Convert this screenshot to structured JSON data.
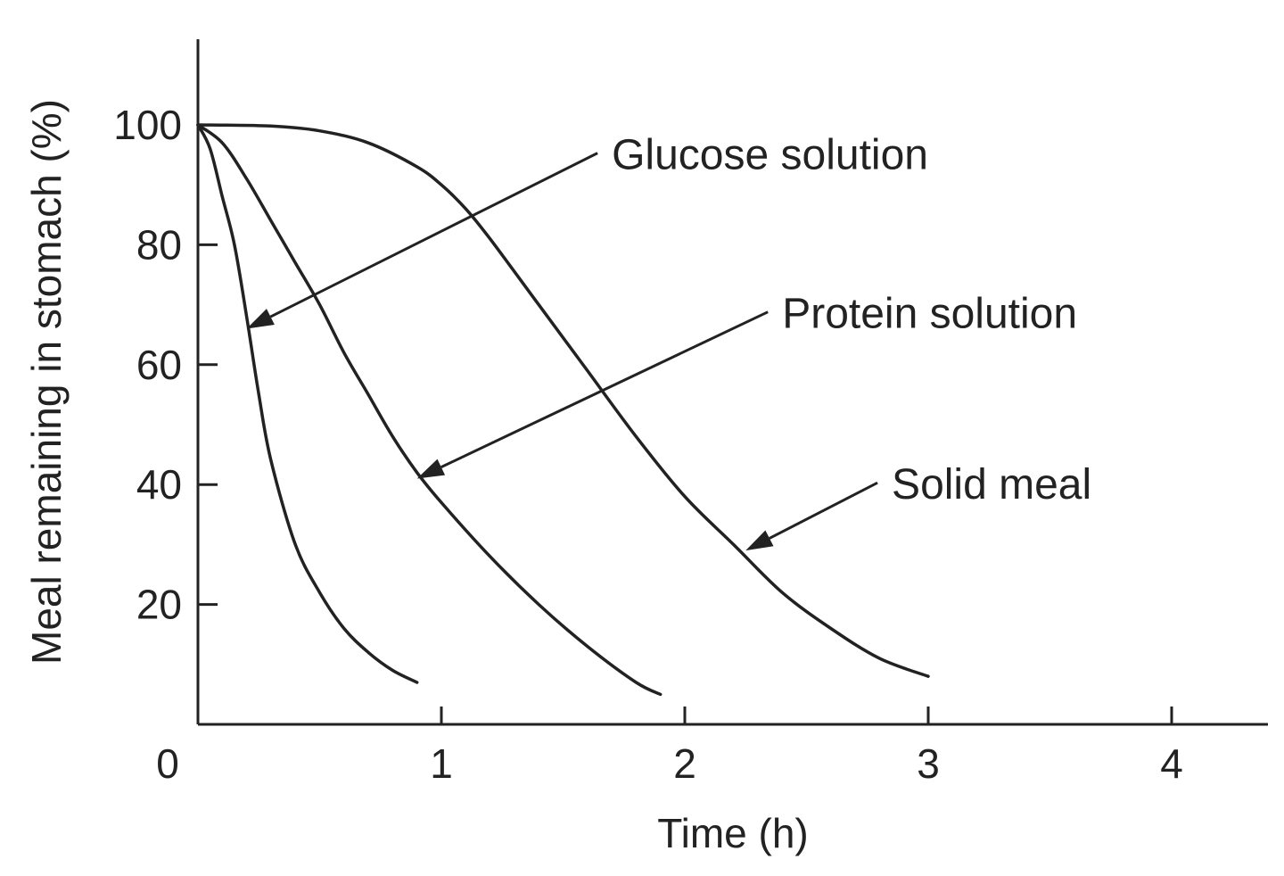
{
  "chart_data": {
    "type": "line",
    "title": "",
    "xlabel": "Time (h)",
    "ylabel": "Meal remaining in stomach (%)",
    "xlim": [
      0,
      4.4
    ],
    "ylim": [
      0,
      115
    ],
    "x_ticks": [
      0,
      1,
      2,
      3,
      4
    ],
    "x_tick_labels": [
      "0",
      "1",
      "2",
      "3",
      "4"
    ],
    "y_ticks": [
      20,
      40,
      60,
      80,
      100
    ],
    "y_tick_labels": [
      "20",
      "40",
      "60",
      "80",
      "100"
    ],
    "grid": false,
    "legend": "none",
    "series": [
      {
        "name": "Glucose solution",
        "x": [
          0,
          0.05,
          0.1,
          0.15,
          0.2,
          0.25,
          0.3,
          0.4,
          0.5,
          0.6,
          0.7,
          0.8,
          0.9
        ],
        "y": [
          100,
          96,
          88,
          80,
          68,
          55,
          44,
          30,
          22,
          16,
          12,
          9,
          7
        ]
      },
      {
        "name": "Protein solution",
        "x": [
          0,
          0.1,
          0.2,
          0.3,
          0.4,
          0.5,
          0.6,
          0.7,
          0.8,
          0.9,
          1.0,
          1.2,
          1.4,
          1.6,
          1.8,
          1.9
        ],
        "y": [
          100,
          97,
          91,
          84,
          77,
          70,
          62,
          55,
          48,
          42,
          37,
          28,
          20,
          13,
          7,
          5
        ]
      },
      {
        "name": "Solid meal",
        "x": [
          0,
          0.3,
          0.5,
          0.7,
          0.9,
          1.0,
          1.1,
          1.2,
          1.4,
          1.6,
          1.8,
          2.0,
          2.2,
          2.4,
          2.6,
          2.8,
          3.0
        ],
        "y": [
          100,
          99.8,
          99,
          97,
          93,
          90,
          86,
          81,
          70,
          59,
          48,
          38,
          30,
          22,
          16,
          11,
          8
        ]
      }
    ],
    "annotations": [
      {
        "label": "Glucose solution",
        "series": "Glucose solution",
        "point": [
          0.2,
          66
        ],
        "text_at": [
          1.7,
          95
        ]
      },
      {
        "label": "Protein solution",
        "series": "Protein solution",
        "point": [
          0.9,
          41
        ],
        "text_at": [
          2.4,
          68.5
        ]
      },
      {
        "label": "Solid meal",
        "series": "Solid meal",
        "point": [
          2.25,
          29
        ],
        "text_at": [
          2.85,
          40
        ]
      }
    ]
  }
}
